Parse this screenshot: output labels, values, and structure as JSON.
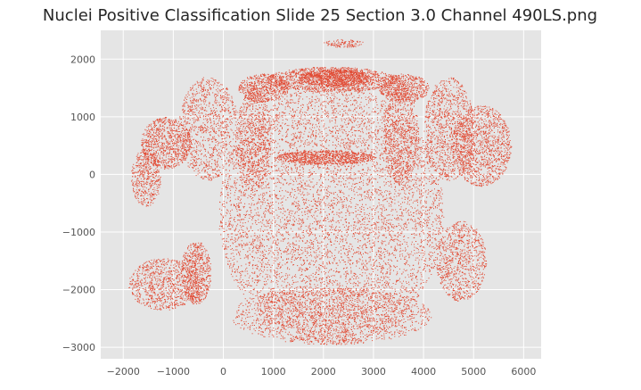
{
  "chart_data": {
    "type": "scatter",
    "title": "Nuclei Positive Classification Slide  25 Section 3.0 Channel 490LS.png",
    "xlabel": "",
    "ylabel": "",
    "xlim": [
      -2450,
      6350
    ],
    "ylim": [
      -3200,
      2500
    ],
    "x_ticks": [
      -2000,
      -1000,
      0,
      1000,
      2000,
      3000,
      4000,
      5000,
      6000
    ],
    "x_tick_labels": [
      "−2000",
      "−1000",
      "0",
      "1000",
      "2000",
      "3000",
      "4000",
      "5000",
      "6000"
    ],
    "y_ticks": [
      2000,
      1000,
      0,
      -1000,
      -2000,
      -3000
    ],
    "y_tick_labels": [
      "2000",
      "1000",
      "0",
      "−1000",
      "−2000",
      "−3000"
    ],
    "grid": true,
    "colors": {
      "point": "#e24a33",
      "plot_background": "#e5e5e5",
      "grid": "#ffffff"
    },
    "regions": [
      {
        "name": "main-body",
        "shape": "ellipse",
        "cx": 2150,
        "cy": -700,
        "rx": 2250,
        "ry": 2250,
        "n": 7000
      },
      {
        "name": "lower-body",
        "shape": "ellipse",
        "cx": 2150,
        "cy": -2450,
        "rx": 2000,
        "ry": 500,
        "n": 1600
      },
      {
        "name": "top-band",
        "shape": "ellipse",
        "cx": 2150,
        "cy": 1650,
        "rx": 1300,
        "ry": 220,
        "n": 1400
      },
      {
        "name": "top-bright-band",
        "shape": "ellipse",
        "cx": 2200,
        "cy": 1680,
        "rx": 700,
        "ry": 150,
        "n": 900
      },
      {
        "name": "mid-band",
        "shape": "ellipse",
        "cx": 2050,
        "cy": 300,
        "rx": 1000,
        "ry": 120,
        "n": 900
      },
      {
        "name": "left-lobe",
        "shape": "ellipse",
        "cx": -1150,
        "cy": 550,
        "rx": 500,
        "ry": 450,
        "n": 900
      },
      {
        "name": "left-lobe-outer",
        "shape": "ellipse",
        "cx": -1550,
        "cy": -50,
        "rx": 300,
        "ry": 500,
        "n": 500
      },
      {
        "name": "left-wing",
        "shape": "ellipse",
        "cx": -300,
        "cy": 800,
        "rx": 600,
        "ry": 900,
        "n": 1100
      },
      {
        "name": "right-lobe",
        "shape": "ellipse",
        "cx": 5150,
        "cy": 500,
        "rx": 600,
        "ry": 700,
        "n": 1300
      },
      {
        "name": "right-wing",
        "shape": "ellipse",
        "cx": 4500,
        "cy": 800,
        "rx": 500,
        "ry": 900,
        "n": 1100
      },
      {
        "name": "lower-left-lobe",
        "shape": "ellipse",
        "cx": -1200,
        "cy": -1900,
        "rx": 700,
        "ry": 450,
        "n": 900
      },
      {
        "name": "lower-left-lobe-edge",
        "shape": "ellipse",
        "cx": -550,
        "cy": -1700,
        "rx": 300,
        "ry": 550,
        "n": 700
      },
      {
        "name": "lower-right-lobe",
        "shape": "ellipse",
        "cx": 4750,
        "cy": -1500,
        "rx": 500,
        "ry": 700,
        "n": 900
      },
      {
        "name": "inner-left-column",
        "shape": "ellipse",
        "cx": 600,
        "cy": 600,
        "rx": 350,
        "ry": 900,
        "n": 800
      },
      {
        "name": "inner-right-column",
        "shape": "ellipse",
        "cx": 3550,
        "cy": 700,
        "rx": 350,
        "ry": 900,
        "n": 800
      },
      {
        "name": "top-fringe",
        "shape": "ellipse",
        "cx": 2400,
        "cy": 2280,
        "rx": 400,
        "ry": 70,
        "n": 120
      },
      {
        "name": "upper-left-band",
        "shape": "ellipse",
        "cx": 800,
        "cy": 1500,
        "rx": 500,
        "ry": 250,
        "n": 600
      },
      {
        "name": "upper-right-band",
        "shape": "ellipse",
        "cx": 3600,
        "cy": 1500,
        "rx": 500,
        "ry": 250,
        "n": 600
      }
    ]
  }
}
